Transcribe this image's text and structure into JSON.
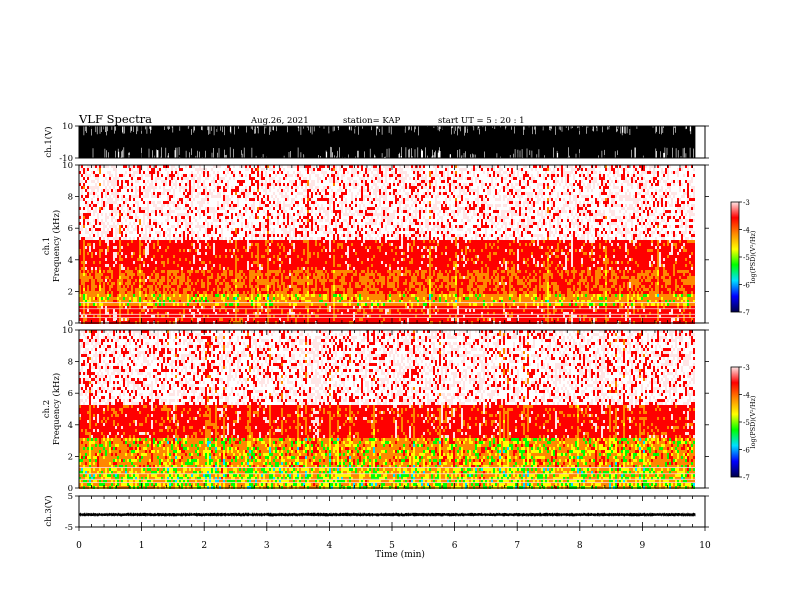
{
  "header": {
    "title": "VLF Spectra",
    "date": "Aug.26, 2021",
    "station": "station= KAP",
    "start": "start  UT  =   5  : 20 : 1"
  },
  "chart_data": [
    {
      "type": "line",
      "panel": "ch1-waveform",
      "ylabel": "ch.1(V)",
      "ylim": [
        -10,
        10
      ],
      "ytick_labels": [
        "10",
        "-10"
      ],
      "description_of_signal": "dense noise, mostly saturated between -10 and 10 V",
      "xlim": [
        0,
        10
      ],
      "data_extent_x": [
        0,
        9.85
      ]
    },
    {
      "type": "heatmap",
      "panel": "ch1-spectrogram",
      "ylabel": "ch.1\nFrequency  (kHz)",
      "ylim": [
        0,
        10
      ],
      "ytick_labels": [
        "0",
        "2",
        "4",
        "6",
        "8",
        "10"
      ],
      "xlim": [
        0,
        10
      ],
      "data_extent_x": [
        0,
        9.85
      ],
      "colorbar": {
        "label": "log(PSD)(V²/Hz)",
        "range": [
          -7,
          -3
        ],
        "tick_labels": [
          "-3",
          "-4",
          "-5",
          "-6",
          "-7"
        ]
      },
      "bands": [
        {
          "f": [
            0,
            1.0
          ],
          "level": -3.6
        },
        {
          "f": [
            1.0,
            1.8
          ],
          "level": -4.2
        },
        {
          "f": [
            1.8,
            3.4
          ],
          "level": -3.9
        },
        {
          "f": [
            3.4,
            5.2
          ],
          "level": -3.6
        },
        {
          "f": [
            5.2,
            10
          ],
          "level": -3.2
        }
      ]
    },
    {
      "type": "heatmap",
      "panel": "ch2-spectrogram",
      "ylabel": "ch.2\nFrequency  (kHz)",
      "ylim": [
        0,
        10
      ],
      "ytick_labels": [
        "0",
        "2",
        "4",
        "6",
        "8",
        "10"
      ],
      "xlim": [
        0,
        10
      ],
      "data_extent_x": [
        0,
        9.85
      ],
      "colorbar": {
        "label": "log(PSD)(V²/Hz)",
        "range": [
          -7,
          -3
        ],
        "tick_labels": [
          "-3",
          "-4",
          "-5",
          "-6",
          "-7"
        ]
      },
      "bands": [
        {
          "f": [
            0,
            1.2
          ],
          "level": -4.4
        },
        {
          "f": [
            1.2,
            3.2
          ],
          "level": -4.1
        },
        {
          "f": [
            3.2,
            5.2
          ],
          "level": -3.6
        },
        {
          "f": [
            5.2,
            10
          ],
          "level": -3.2
        }
      ]
    },
    {
      "type": "line",
      "panel": "ch3-waveform",
      "ylabel": "ch.3(V)",
      "ylim": [
        -5,
        5
      ],
      "ytick_labels": [
        "5",
        "-5"
      ],
      "description_of_signal": "narrow noise band near -1 V",
      "signal_center": -1,
      "signal_halfwidth": 0.6,
      "xlim": [
        0,
        10
      ],
      "data_extent_x": [
        0,
        9.85
      ],
      "xlabel": "Time  (min)",
      "xtick_labels": [
        "0",
        "1",
        "2",
        "3",
        "4",
        "5",
        "6",
        "7",
        "8",
        "9",
        "10"
      ]
    }
  ],
  "colors": {
    "heat": [
      "#00004a",
      "#0000ff",
      "#00e0ff",
      "#00ff00",
      "#ffff00",
      "#ff8800",
      "#ff0000",
      "#ffe6e6"
    ]
  }
}
